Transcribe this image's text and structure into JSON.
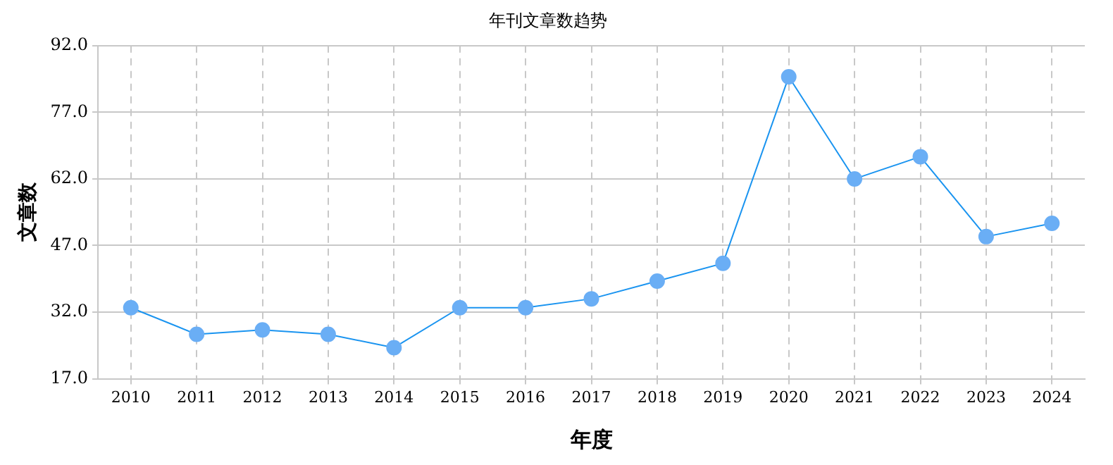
{
  "chart_data": {
    "type": "line",
    "title": "年刊文章数趋势",
    "xlabel": "年度",
    "ylabel": "文章数",
    "categories": [
      "2010",
      "2011",
      "2012",
      "2013",
      "2014",
      "2015",
      "2016",
      "2017",
      "2018",
      "2019",
      "2020",
      "2021",
      "2022",
      "2023",
      "2024"
    ],
    "series": [
      {
        "color": "#1a94f0",
        "values": [
          33,
          27,
          28,
          27,
          24,
          33,
          33,
          35,
          39,
          43,
          85,
          62,
          67,
          49,
          52
        ]
      }
    ],
    "ylim": [
      17,
      92
    ],
    "yticks": [
      {
        "value": 17,
        "label": "17.0"
      },
      {
        "value": 32,
        "label": "32.0"
      },
      {
        "value": 47,
        "label": "47.0"
      },
      {
        "value": 62,
        "label": "62.0"
      },
      {
        "value": 77,
        "label": "77.0"
      },
      {
        "value": 92,
        "label": "92.0"
      }
    ],
    "grid": true,
    "legend": false,
    "marker": "circle",
    "line_style": "solid"
  }
}
